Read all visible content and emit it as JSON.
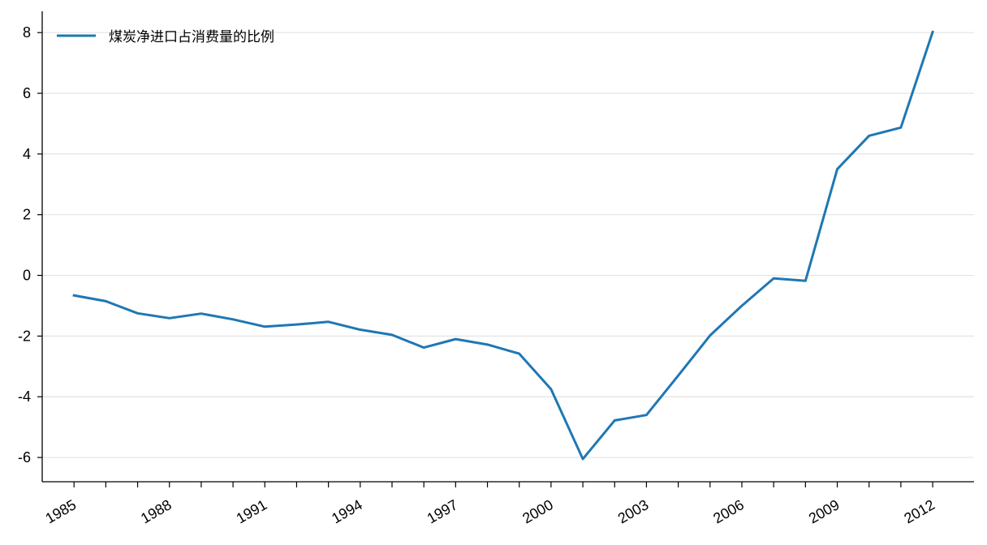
{
  "chart_data": {
    "type": "line",
    "title": "",
    "xlabel": "",
    "ylabel": "",
    "x": [
      1985,
      1986,
      1987,
      1988,
      1989,
      1990,
      1991,
      1992,
      1993,
      1994,
      1995,
      1996,
      1997,
      1998,
      1999,
      2000,
      2001,
      2002,
      2003,
      2004,
      2005,
      2006,
      2007,
      2008,
      2009,
      2010,
      2011,
      2012
    ],
    "series": [
      {
        "name": "煤炭净进口占消费量的比例",
        "color": "#1f77b4",
        "values": [
          -0.66,
          -0.85,
          -1.25,
          -1.41,
          -1.26,
          -1.45,
          -1.69,
          -1.62,
          -1.53,
          -1.79,
          -1.96,
          -2.38,
          -2.1,
          -2.28,
          -2.58,
          -3.75,
          -6.05,
          -4.78,
          -4.6,
          -3.3,
          -1.98,
          -1.0,
          -0.1,
          -0.18,
          3.5,
          4.6,
          4.87,
          8.02
        ]
      }
    ],
    "x_tick_labels": [
      "1985",
      "1988",
      "1991",
      "1994",
      "1997",
      "2000",
      "2003",
      "2006",
      "2009",
      "2012"
    ],
    "y_tick_labels": [
      "-6",
      "-4",
      "-2",
      "0",
      "2",
      "4",
      "6",
      "8"
    ],
    "ylim": [
      -6.8,
      8.7
    ],
    "xlim": [
      1984,
      2013.3
    ],
    "grid": "horizontal",
    "legend_position": "top-left"
  }
}
